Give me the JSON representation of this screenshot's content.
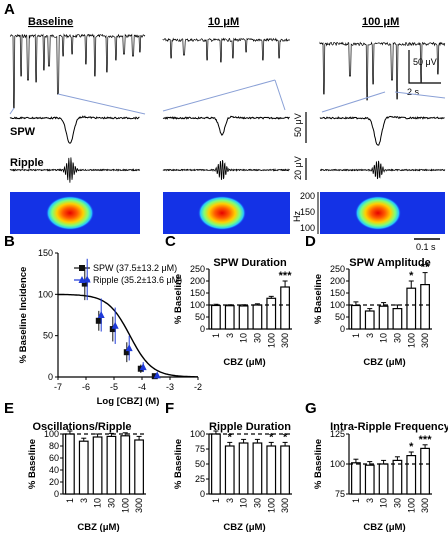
{
  "panels": {
    "a": {
      "letter": "A",
      "conditions": [
        "Baseline",
        "10 μM",
        "100 μM"
      ],
      "trace_labels": [
        "SPW",
        "Ripple"
      ],
      "scale": {
        "voltage_top": "50 μV",
        "time_top": "2 s",
        "spw_v": "50 μV",
        "ripple_v": "20 μV",
        "spec_time": "0.1 s",
        "spec_unit": "Hz",
        "spec_ticks": [
          "200",
          "150",
          "100"
        ]
      }
    },
    "b": {
      "letter": "B"
    },
    "c": {
      "letter": "C"
    },
    "d": {
      "letter": "D"
    },
    "e": {
      "letter": "E"
    },
    "f": {
      "letter": "F"
    },
    "g": {
      "letter": "G"
    }
  },
  "chart_data": [
    {
      "id": "B",
      "type": "scatter",
      "xlabel": "Log [CBZ] (M)",
      "ylabel": "% Baseline Incidence",
      "xlim": [
        -7,
        -2
      ],
      "ylim": [
        0,
        150
      ],
      "xticks": [
        "-7",
        "-6",
        "-5",
        "-4",
        "-3",
        "-2"
      ],
      "yticks": [
        "0",
        "50",
        "100",
        "150"
      ],
      "series": [
        {
          "name": "SPW (37.5±13.2 μM)",
          "color": "#111111",
          "marker": "square",
          "x": [
            -6.0,
            -5.5,
            -5.0,
            -4.5,
            -4.0,
            -3.5
          ],
          "y": [
            113,
            68,
            58,
            30,
            10,
            1
          ],
          "err": [
            20,
            12,
            15,
            12,
            5,
            1
          ]
        },
        {
          "name": "Ripple (35.2±13.6 μM)",
          "color": "#1e3ad8",
          "marker": "triangle",
          "x": [
            -6.0,
            -5.5,
            -5.0,
            -4.5,
            -4.0,
            -3.5
          ],
          "y": [
            118,
            75,
            62,
            35,
            12,
            2
          ],
          "err": [
            25,
            20,
            22,
            15,
            6,
            1
          ]
        }
      ]
    },
    {
      "id": "C",
      "type": "bar",
      "title": "SPW Duration",
      "ylabel": "% Baseline",
      "xlabel": "CBZ (μM)",
      "categories": [
        "1",
        "3",
        "10",
        "30",
        "100",
        "300"
      ],
      "values": [
        98,
        97,
        96,
        100,
        128,
        175
      ],
      "err": [
        5,
        4,
        5,
        5,
        8,
        25
      ],
      "sig": [
        "",
        "",
        "",
        "",
        "",
        "***"
      ],
      "ylim": [
        0,
        250
      ],
      "yticks": [
        "0",
        "50",
        "100",
        "150",
        "200",
        "250"
      ],
      "baseline": 100
    },
    {
      "id": "D",
      "type": "bar",
      "title": "SPW Amplitude",
      "ylabel": "% Baseline",
      "xlabel": "CBZ (μM)",
      "categories": [
        "1",
        "3",
        "10",
        "30",
        "100",
        "300"
      ],
      "values": [
        98,
        75,
        95,
        85,
        170,
        185
      ],
      "err": [
        15,
        10,
        15,
        15,
        30,
        50
      ],
      "sig": [
        "",
        "",
        "",
        "",
        "*",
        "**"
      ],
      "ylim": [
        0,
        250
      ],
      "yticks": [
        "0",
        "50",
        "100",
        "150",
        "200",
        "250"
      ],
      "baseline": 100
    },
    {
      "id": "E",
      "type": "bar",
      "title": "Oscillations/Ripple",
      "ylabel": "% Baseline",
      "xlabel": "CBZ (μM)",
      "categories": [
        "1",
        "3",
        "10",
        "30",
        "100",
        "300"
      ],
      "values": [
        100,
        88,
        95,
        96,
        97,
        90
      ],
      "err": [
        5,
        5,
        5,
        5,
        5,
        6
      ],
      "sig": [
        "",
        "",
        "",
        "",
        "",
        ""
      ],
      "ylim": [
        0,
        100
      ],
      "yticks": [
        "0",
        "20",
        "40",
        "60",
        "80",
        "100"
      ],
      "baseline": 100
    },
    {
      "id": "F",
      "type": "bar",
      "title": "Ripple Duration",
      "ylabel": "% Baseline",
      "xlabel": "CBZ (μM)",
      "categories": [
        "1",
        "3",
        "10",
        "30",
        "100",
        "300"
      ],
      "values": [
        100,
        80,
        85,
        85,
        80,
        80
      ],
      "err": [
        5,
        6,
        6,
        6,
        6,
        6
      ],
      "sig": [
        "",
        "*",
        "",
        "",
        "*",
        "*"
      ],
      "ylim": [
        0,
        100
      ],
      "yticks": [
        "0",
        "25",
        "50",
        "75",
        "100"
      ],
      "baseline": 100
    },
    {
      "id": "G",
      "type": "bar",
      "title": "Intra-Ripple Frequency",
      "ylabel": "% Baseline",
      "xlabel": "CBZ (μM)",
      "categories": [
        "1",
        "3",
        "10",
        "30",
        "100",
        "300"
      ],
      "values": [
        101,
        99,
        100,
        103,
        107,
        113
      ],
      "err": [
        3,
        3,
        3,
        3,
        3,
        3
      ],
      "sig": [
        "",
        "",
        "",
        "",
        "*",
        "***"
      ],
      "ylim": [
        75,
        125
      ],
      "yticks": [
        "75",
        "100",
        "125"
      ],
      "baseline": 100
    }
  ]
}
